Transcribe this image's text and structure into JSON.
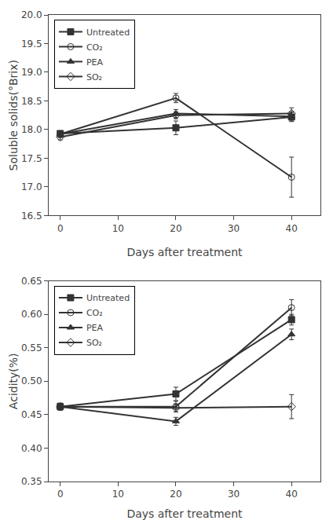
{
  "chart_data": [
    {
      "type": "line",
      "xlabel": "Days after treatment",
      "ylabel": "Soluble solids(°Brix)",
      "x": [
        0,
        20,
        40
      ],
      "xlim": [
        -2,
        45
      ],
      "ylim": [
        16.5,
        20.0
      ],
      "xticks": [
        0,
        10,
        20,
        30,
        40
      ],
      "yticks": [
        16.5,
        {
          "value": 17.0,
          "label": "17.0"
        },
        17.5,
        {
          "value": 18.0,
          "label": "18.0"
        },
        18.5,
        {
          "value": 19.0,
          "label": "19.0"
        },
        19.5,
        {
          "value": 20.0,
          "label": "20.0"
        }
      ],
      "grid": false,
      "legend": "upper left",
      "series": [
        {
          "name": "Untreated",
          "color": "#333333",
          "marker": "square",
          "values": [
            17.93,
            18.03,
            18.22
          ],
          "errors": [
            0.05,
            0.12,
            0.08
          ]
        },
        {
          "name": "CO₂",
          "color": "#333333",
          "marker": "circle-open",
          "values": [
            17.92,
            18.55,
            17.17
          ],
          "errors": [
            0.06,
            0.08,
            0.35
          ]
        },
        {
          "name": "PEA",
          "color": "#333333",
          "marker": "triangle-up",
          "values": [
            17.92,
            18.28,
            18.23
          ],
          "errors": [
            0.05,
            0.07,
            0.08
          ]
        },
        {
          "name": "SO₂",
          "color": "#333333",
          "marker": "diamond-open",
          "values": [
            17.87,
            18.25,
            18.28
          ],
          "errors": [
            0.05,
            0.06,
            0.1
          ]
        }
      ]
    },
    {
      "type": "line",
      "xlabel": "Days after treatment",
      "ylabel": "Acidity(%)",
      "x": [
        0,
        20,
        40
      ],
      "xlim": [
        -2,
        45
      ],
      "ylim": [
        0.35,
        0.65
      ],
      "xticks": [
        0,
        10,
        20,
        30,
        40
      ],
      "yticks": [
        0.35,
        {
          "value": 0.4,
          "label": "0.40"
        },
        0.45,
        {
          "value": 0.5,
          "label": "0.50"
        },
        0.55,
        {
          "value": 0.6,
          "label": "0.60"
        },
        0.65
      ],
      "grid": false,
      "legend": "upper left",
      "series": [
        {
          "name": "Untreated",
          "color": "#333333",
          "marker": "square",
          "values": [
            0.462,
            0.481,
            0.592
          ],
          "errors": [
            0.005,
            0.01,
            0.008
          ]
        },
        {
          "name": "CO₂",
          "color": "#333333",
          "marker": "circle-open",
          "values": [
            0.462,
            0.462,
            0.61
          ],
          "errors": [
            0.005,
            0.008,
            0.012
          ]
        },
        {
          "name": "PEA",
          "color": "#333333",
          "marker": "triangle-up",
          "values": [
            0.462,
            0.44,
            0.57
          ],
          "errors": [
            0.005,
            0.006,
            0.008
          ]
        },
        {
          "name": "SO₂",
          "color": "#333333",
          "marker": "diamond-open",
          "values": [
            0.462,
            0.46,
            0.462
          ],
          "errors": [
            0.005,
            0.006,
            0.018
          ]
        }
      ]
    }
  ]
}
